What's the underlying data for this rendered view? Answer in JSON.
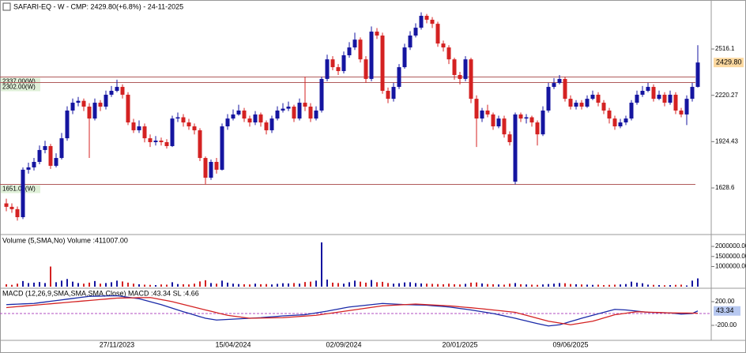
{
  "chart_data": [
    {
      "type": "candlestick",
      "title": "SAFARI-EQ - W - CMP: 2429.80(+6.8%) - 24-11-2025",
      "up_color": "#1515a0",
      "down_color": "#d42222",
      "ylim": [
        1331,
        2829
      ],
      "yticks": [
        2516.1,
        2220.27,
        1924.43,
        1628.6
      ],
      "levels": [
        {
          "value": 2337,
          "label": "2337.00(W)"
        },
        {
          "value": 2302,
          "label": "2302.00(W)"
        },
        {
          "value": 1651,
          "label": "1651.00(W)"
        }
      ],
      "level_color": "#b05a5a",
      "cmp_label": {
        "value": 2429.8,
        "label": "2429.80"
      },
      "open": [
        1530,
        1508,
        1493,
        1442,
        1745,
        1760,
        1795,
        1871,
        1896,
        1770,
        1820,
        1946,
        2123,
        2173,
        2185,
        2148,
        2072,
        2173,
        2148,
        2224,
        2249,
        2274,
        2224,
        2047,
        1997,
        2022,
        1946,
        1921,
        1931,
        1921,
        1896,
        2072,
        2080,
        2047,
        2022,
        1997,
        1820,
        1694,
        1795,
        1745,
        2022,
        2072,
        2098,
        2123,
        2072,
        2047,
        2098,
        2047,
        1997,
        2072,
        2123,
        2135,
        2148,
        2072,
        2173,
        2148,
        2072,
        2123,
        2325,
        2450,
        2400,
        2375,
        2476,
        2526,
        2576,
        2450,
        2325,
        2627,
        2602,
        2249,
        2198,
        2274,
        2400,
        2526,
        2602,
        2652,
        2728,
        2703,
        2677,
        2551,
        2526,
        2450,
        2350,
        2325,
        2450,
        2198,
        2072,
        2123,
        2098,
        2022,
        2072,
        1971,
        1669,
        2098,
        2072,
        2080,
        2047,
        1971,
        2123,
        2274,
        2299,
        2325,
        2198,
        2148,
        2173,
        2148,
        2198,
        2224,
        2173,
        2123,
        2072,
        2022,
        2047,
        2072,
        2173,
        2224,
        2249,
        2274,
        2198,
        2224,
        2173,
        2224,
        2123,
        2098,
        2198,
        2274
      ],
      "high": [
        1560,
        1530,
        1510,
        1760,
        1790,
        1820,
        1900,
        1930,
        1910,
        1850,
        1980,
        2150,
        2200,
        2210,
        2200,
        2170,
        2200,
        2190,
        2250,
        2280,
        2320,
        2290,
        2240,
        2070,
        2060,
        2040,
        1970,
        1960,
        1950,
        1940,
        2090,
        2110,
        2100,
        2070,
        2040,
        2010,
        1830,
        1810,
        1820,
        2040,
        2100,
        2130,
        2160,
        2140,
        2090,
        2120,
        2110,
        2060,
        2090,
        2150,
        2170,
        2180,
        2160,
        2200,
        2340,
        2170,
        2150,
        2340,
        2480,
        2470,
        2420,
        2500,
        2560,
        2620,
        2590,
        2470,
        2660,
        2650,
        2620,
        2270,
        2300,
        2420,
        2550,
        2630,
        2680,
        2750,
        2740,
        2720,
        2690,
        2570,
        2540,
        2460,
        2370,
        2470,
        2460,
        2220,
        2140,
        2160,
        2110,
        2090,
        2090,
        1990,
        2110,
        2110,
        2100,
        2090,
        2060,
        2150,
        2300,
        2330,
        2350,
        2340,
        2220,
        2190,
        2190,
        2220,
        2250,
        2240,
        2190,
        2140,
        2090,
        2070,
        2090,
        2190,
        2250,
        2280,
        2300,
        2290,
        2250,
        2240,
        2250,
        2240,
        2140,
        2220,
        2300,
        2540
      ],
      "low": [
        1480,
        1470,
        1420,
        1430,
        1720,
        1740,
        1780,
        1850,
        1750,
        1760,
        1810,
        1930,
        2100,
        2150,
        2120,
        1820,
        2060,
        2120,
        2130,
        2210,
        2240,
        2200,
        2030,
        1980,
        1980,
        1920,
        1890,
        1900,
        1900,
        1880,
        1890,
        2050,
        2020,
        2000,
        1970,
        1800,
        1651,
        1680,
        1720,
        1740,
        2000,
        2060,
        2090,
        2050,
        2020,
        2030,
        2020,
        1970,
        1980,
        2060,
        2110,
        2120,
        2050,
        2060,
        2120,
        2050,
        2060,
        2110,
        2310,
        2380,
        2350,
        2360,
        2460,
        2510,
        2430,
        2300,
        2310,
        2580,
        2230,
        2170,
        2180,
        2260,
        2390,
        2510,
        2590,
        2640,
        2680,
        2650,
        2530,
        2500,
        2420,
        2320,
        2290,
        2310,
        2170,
        1890,
        2050,
        2080,
        2000,
        2010,
        1950,
        1900,
        1651,
        2050,
        2040,
        2020,
        1900,
        1960,
        2110,
        2260,
        2290,
        2180,
        2130,
        2130,
        2130,
        2140,
        2190,
        2150,
        2100,
        2040,
        2000,
        2010,
        2030,
        2060,
        2160,
        2210,
        2240,
        2180,
        2190,
        2150,
        2160,
        2100,
        2080,
        2030,
        2180,
        2270
      ],
      "close": [
        1508,
        1493,
        1442,
        1745,
        1760,
        1795,
        1871,
        1896,
        1770,
        1820,
        1946,
        2123,
        2173,
        2185,
        2148,
        2072,
        2173,
        2148,
        2224,
        2249,
        2274,
        2224,
        2047,
        1997,
        2022,
        1946,
        1921,
        1931,
        1921,
        1896,
        2072,
        2080,
        2047,
        2022,
        1997,
        1820,
        1694,
        1795,
        1745,
        2022,
        2072,
        2098,
        2123,
        2072,
        2047,
        2098,
        2047,
        1997,
        2072,
        2123,
        2135,
        2148,
        2072,
        2173,
        2148,
        2072,
        2123,
        2325,
        2450,
        2400,
        2375,
        2476,
        2526,
        2576,
        2450,
        2325,
        2627,
        2602,
        2249,
        2198,
        2274,
        2400,
        2526,
        2602,
        2652,
        2728,
        2703,
        2677,
        2551,
        2526,
        2450,
        2350,
        2325,
        2450,
        2198,
        2072,
        2123,
        2098,
        2022,
        2072,
        1971,
        1921,
        2098,
        2072,
        2080,
        2047,
        1971,
        2123,
        2274,
        2299,
        2325,
        2198,
        2148,
        2173,
        2148,
        2198,
        2224,
        2173,
        2123,
        2072,
        2022,
        2047,
        2072,
        2173,
        2224,
        2249,
        2274,
        2198,
        2224,
        2173,
        2224,
        2123,
        2098,
        2198,
        2274,
        2429.8
      ]
    },
    {
      "type": "bar",
      "legend": "Volume (5,SMA,No) Volume :411007.00",
      "ylim": [
        0,
        2550000
      ],
      "yticks": [
        {
          "value": 1000000,
          "label": "1000000.00"
        },
        {
          "value": 1500000,
          "label": "1500000.00"
        },
        {
          "value": 2000000,
          "label": "2000000.00"
        }
      ],
      "values": [
        120000,
        90000,
        150000,
        280000,
        180000,
        200000,
        230000,
        180000,
        1000000,
        220000,
        300000,
        380000,
        250000,
        180000,
        150000,
        200000,
        280000,
        150000,
        180000,
        220000,
        300000,
        260000,
        200000,
        150000,
        120000,
        100000,
        90000,
        80000,
        110000,
        100000,
        220000,
        130000,
        120000,
        110000,
        150000,
        260000,
        320000,
        180000,
        150000,
        300000,
        200000,
        150000,
        130000,
        120000,
        110000,
        150000,
        120000,
        130000,
        110000,
        140000,
        170000,
        160000,
        180000,
        150000,
        230000,
        250000,
        300000,
        2200000,
        350000,
        200000,
        180000,
        150000,
        220000,
        300000,
        250000,
        200000,
        330000,
        220000,
        240000,
        180000,
        150000,
        170000,
        210000,
        220000,
        180000,
        160000,
        150000,
        140000,
        130000,
        120000,
        150000,
        120000,
        110000,
        140000,
        200000,
        210000,
        160000,
        130000,
        120000,
        110000,
        100000,
        150000,
        180000,
        120000,
        110000,
        100000,
        90000,
        110000,
        130000,
        150000,
        180000,
        170000,
        130000,
        120000,
        110000,
        100000,
        90000,
        100000,
        80000,
        90000,
        100000,
        110000,
        130000,
        250000,
        200000,
        170000,
        100000,
        90000,
        80000,
        70000,
        80000,
        90000,
        100000,
        60000,
        300000,
        411007
      ]
    },
    {
      "type": "line",
      "legend": "MACD (12,26,9,SMA,SMA,SMA,Close) MACD :43.34 SL :4.66",
      "ylim": [
        -440,
        413
      ],
      "yticks": [
        {
          "value": 200,
          "label": "200.00"
        },
        {
          "value": -200,
          "label": "-200.00"
        }
      ],
      "zero_line": 0,
      "zero_color": "#b04cc0",
      "last_label": {
        "value": 43.34,
        "label": "43.34"
      },
      "categories": [
        null,
        null,
        null,
        null,
        null,
        null,
        null,
        null,
        null,
        null,
        null,
        null,
        null,
        null,
        null,
        null,
        null,
        null,
        null,
        null,
        "27/11/2023",
        null,
        null,
        null,
        null,
        null,
        null,
        null,
        null,
        null,
        null,
        null,
        null,
        null,
        null,
        null,
        null,
        null,
        null,
        null,
        null,
        "15/04/2024",
        null,
        null,
        null,
        null,
        null,
        null,
        null,
        null,
        null,
        null,
        null,
        null,
        null,
        null,
        null,
        null,
        null,
        null,
        null,
        "02/09/2024",
        null,
        null,
        null,
        null,
        null,
        null,
        null,
        null,
        null,
        null,
        null,
        null,
        null,
        null,
        null,
        null,
        null,
        null,
        null,
        null,
        "20/01/2025",
        null,
        null,
        null,
        null,
        null,
        null,
        null,
        null,
        null,
        null,
        null,
        null,
        null,
        null,
        null,
        null,
        null,
        null,
        null,
        "09/06/2025",
        null,
        null,
        null,
        null,
        null,
        null,
        null,
        null,
        null,
        null,
        null,
        null,
        null,
        null,
        null,
        null,
        null,
        null,
        null,
        null,
        null,
        null,
        null
      ],
      "series": [
        {
          "name": "MACD",
          "color": "#1a2aa8",
          "values": [
            150,
            154,
            158,
            162,
            166,
            170,
            182,
            194,
            206,
            218,
            230,
            242,
            254,
            266,
            278,
            290,
            292,
            294,
            296,
            298,
            300,
            288,
            275,
            262,
            250,
            225,
            200,
            175,
            150,
            120,
            90,
            60,
            30,
            3,
            -25,
            -53,
            -80,
            -95,
            -110,
            -105,
            -100,
            -95,
            -90,
            -85,
            -80,
            -75,
            -70,
            -62,
            -55,
            -48,
            -40,
            -35,
            -30,
            -25,
            -20,
            -5,
            10,
            25,
            40,
            58,
            75,
            93,
            110,
            120,
            130,
            140,
            150,
            160,
            170,
            165,
            160,
            155,
            150,
            148,
            145,
            143,
            140,
            132,
            125,
            118,
            110,
            98,
            85,
            73,
            60,
            45,
            30,
            15,
            0,
            -20,
            -40,
            -60,
            -80,
            -103,
            -125,
            -148,
            -170,
            -190,
            -210,
            -200,
            -190,
            -163,
            -135,
            -108,
            -80,
            -55,
            -30,
            -5,
            20,
            45,
            70,
            65,
            60,
            50,
            40,
            30,
            20,
            18,
            15,
            13,
            10,
            0,
            -10,
            -5,
            0,
            43.34
          ]
        },
        {
          "name": "SL",
          "color": "#d42222",
          "values": [
            100,
            108,
            116,
            124,
            132,
            140,
            148,
            156,
            164,
            172,
            180,
            188,
            196,
            204,
            212,
            220,
            228,
            236,
            244,
            252,
            260,
            262,
            263,
            265,
            267,
            268,
            270,
            253,
            235,
            218,
            200,
            177,
            153,
            130,
            107,
            83,
            60,
            38,
            15,
            -8,
            -30,
            -43,
            -55,
            -68,
            -80,
            -78,
            -77,
            -75,
            -73,
            -72,
            -70,
            -63,
            -57,
            -50,
            -43,
            -37,
            -30,
            -17,
            -3,
            10,
            23,
            37,
            50,
            63,
            77,
            90,
            103,
            117,
            130,
            135,
            140,
            145,
            150,
            155,
            160,
            155,
            150,
            145,
            140,
            135,
            130,
            122,
            113,
            105,
            97,
            88,
            80,
            70,
            60,
            50,
            40,
            30,
            20,
            -5,
            -30,
            -55,
            -80,
            -105,
            -130,
            -145,
            -160,
            -175,
            -190,
            -175,
            -160,
            -145,
            -130,
            -103,
            -75,
            -48,
            -20,
            -8,
            5,
            18,
            30,
            27,
            23,
            20,
            17,
            13,
            10,
            9,
            8,
            7,
            6,
            4.66
          ]
        }
      ]
    }
  ]
}
